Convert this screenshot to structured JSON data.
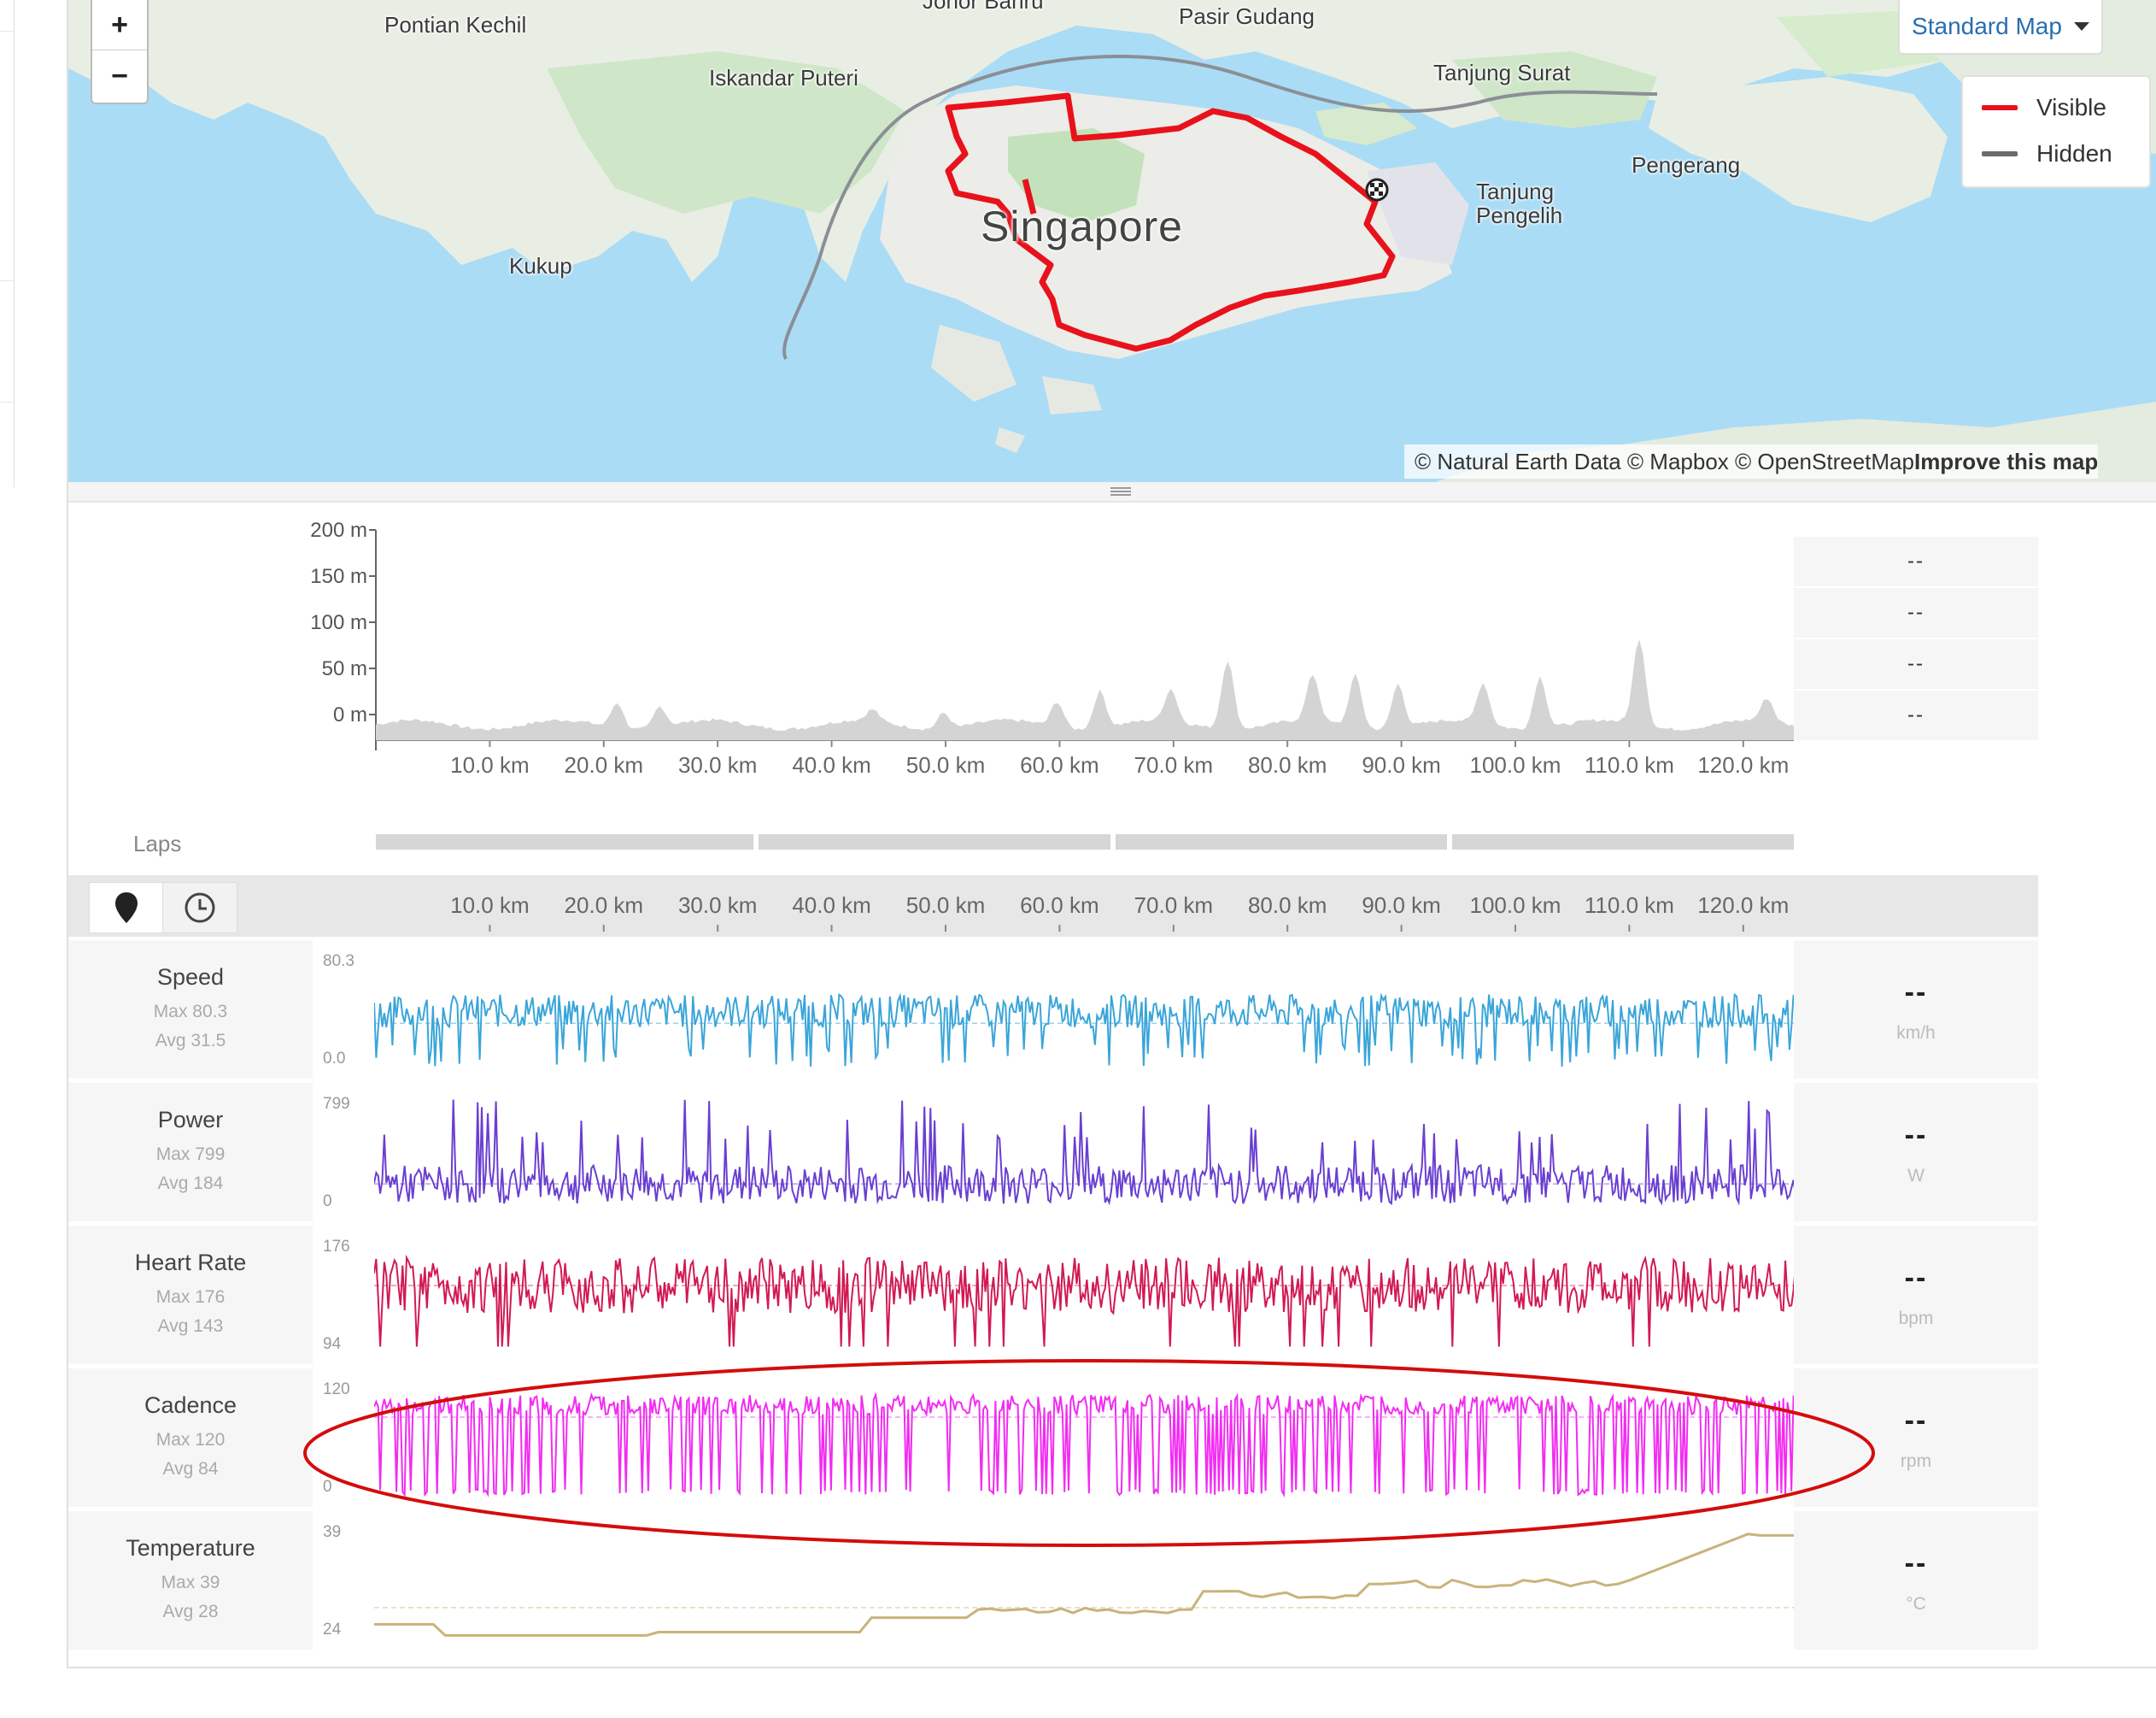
{
  "map": {
    "zoom_in": "+",
    "zoom_out": "−",
    "style_selector": "Standard Map",
    "legend": [
      {
        "label": "Visible",
        "color": "#e8121c"
      },
      {
        "label": "Hidden",
        "color": "#6b6b6b"
      }
    ],
    "labels": {
      "johor": "Johor Bahru",
      "pasir_gudang": "Pasir Gudang",
      "pontian": "Pontian Kechil",
      "iskandar": "Iskandar Puteri",
      "tanjung_surat": "Tanjung Surat",
      "pengerang": "Pengerang",
      "tanjung_pengelih": "Tanjung Pengelih",
      "kukup": "Kukup",
      "singapore": "Singapore"
    },
    "attribution_plain": "© Natural Earth Data © Mapbox © OpenStreetMap ",
    "attribution_link": "Improve this map",
    "route_color": "#e8121c",
    "water_color": "#aadcf5",
    "land_color": "#e9eee4"
  },
  "elevation": {
    "y_ticks": [
      "200 m",
      "150 m",
      "100 m",
      "50 m",
      "0 m"
    ],
    "x_ticks": [
      "10.0 km",
      "20.0 km",
      "30.0 km",
      "40.0 km",
      "50.0 km",
      "60.0 km",
      "70.0 km",
      "80.0 km",
      "90.0 km",
      "100.0 km",
      "110.0 km",
      "120.0 km"
    ],
    "right_values": [
      "--",
      "--",
      "--",
      "--"
    ],
    "fill_color": "#d4d4d4"
  },
  "laps": {
    "label": "Laps",
    "count": 4
  },
  "toolbar": {
    "distance_icon": "map-pin-icon",
    "time_icon": "clock-icon",
    "x_ticks": [
      "10.0 km",
      "20.0 km",
      "30.0 km",
      "40.0 km",
      "50.0 km",
      "60.0 km",
      "70.0 km",
      "80.0 km",
      "90.0 km",
      "100.0 km",
      "110.0 km",
      "120.0 km"
    ]
  },
  "streams": [
    {
      "key": "speed",
      "name": "Speed",
      "max": "Max 80.3",
      "avg": "Avg 31.5",
      "ymax": "80.3",
      "ymin": "0.0",
      "value": "--",
      "unit": "km/h",
      "color": "#3aa5d9",
      "avg_frac": 0.39
    },
    {
      "key": "power",
      "name": "Power",
      "max": "Max 799",
      "avg": "Avg 184",
      "ymax": "799",
      "ymin": "0",
      "value": "--",
      "unit": "W",
      "color": "#6a3fd1",
      "avg_frac": 0.23
    },
    {
      "key": "heartrate",
      "name": "Heart Rate",
      "max": "Max 176",
      "avg": "Avg 143",
      "ymax": "176",
      "ymin": "94",
      "value": "--",
      "unit": "bpm",
      "color": "#d11a52",
      "avg_frac": 0.6
    },
    {
      "key": "cadence",
      "name": "Cadence",
      "max": "Max 120",
      "avg": "Avg 84",
      "ymax": "120",
      "ymin": "0",
      "value": "--",
      "unit": "rpm",
      "color": "#f22cf2",
      "avg_frac": 0.7
    },
    {
      "key": "temperature",
      "name": "Temperature",
      "max": "Max 39",
      "avg": "Avg 28",
      "ymax": "39",
      "ymin": "24",
      "value": "--",
      "unit": "°C",
      "color": "#c8b37a",
      "avg_frac": 0.27
    }
  ],
  "highlight_color": "#d40c0c"
}
